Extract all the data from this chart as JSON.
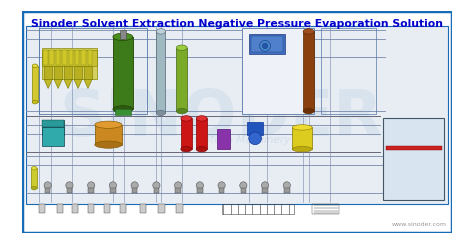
{
  "title": "Sinoder Solvent Extraction Negative Pressure Evaporation Solution",
  "title_color": "#0000CC",
  "title_fontsize": 7.8,
  "title_fontweight": "bold",
  "bg_color": "#FFFFFF",
  "outer_border_color": "#1a6bb5",
  "inner_border_color": "#1a6bb5",
  "watermark_text": "SINODER",
  "watermark_color": "#b8cde0",
  "watermark_alpha": 0.3,
  "sub_watermark_text": "Sinuotech Machinery",
  "sub_watermark_color": "#b8cde0",
  "sub_watermark_alpha": 0.45,
  "website_text": "www.sinoder.com",
  "website_color": "#999999",
  "website_fontsize": 4.5,
  "diagram_bg": "#e8edf3",
  "line_color": "#888899",
  "line_color2": "#aaaaaa"
}
